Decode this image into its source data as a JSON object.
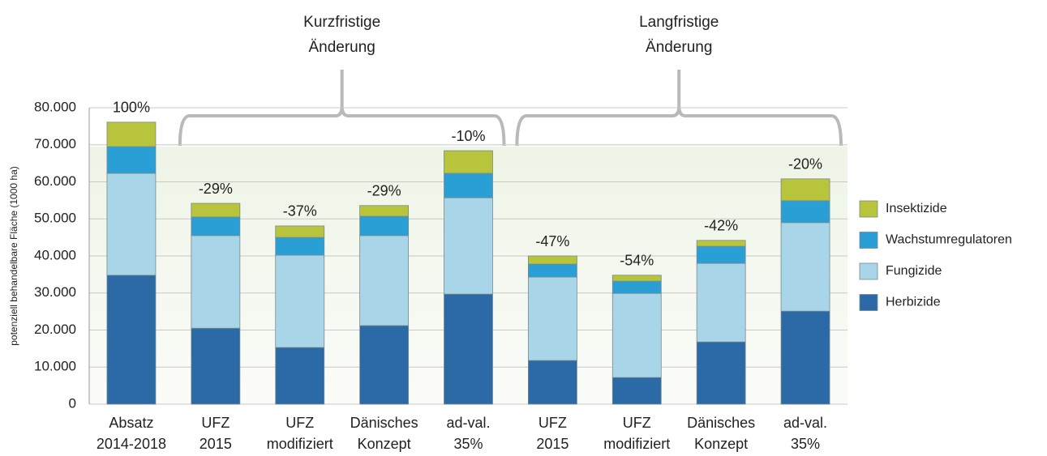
{
  "chart_data": {
    "type": "stacked_bar",
    "y_label": "potenziell behandelbare Fläche (1000 ha)",
    "categories": [
      [
        "Absatz",
        "2014-2018"
      ],
      [
        "UFZ",
        "2015"
      ],
      [
        "UFZ",
        "modifiziert"
      ],
      [
        "Dänisches",
        "Konzept"
      ],
      [
        "ad-val.",
        "35%"
      ],
      [
        "UFZ",
        "2015"
      ],
      [
        "UFZ",
        "modifiziert"
      ],
      [
        "Dänisches",
        "Konzept"
      ],
      [
        "ad-val.",
        "35%"
      ]
    ],
    "series": [
      {
        "name": "Herbizide",
        "color": "#2b6aa6",
        "values": [
          34800,
          20500,
          15300,
          21200,
          29700,
          11800,
          7200,
          16800,
          25100
        ]
      },
      {
        "name": "Fungizide",
        "color": "#a9d5e8",
        "values": [
          27500,
          25000,
          24900,
          24300,
          26000,
          22500,
          22700,
          21200,
          23900
        ]
      },
      {
        "name": "Wachstumregulatoren",
        "color": "#2a9fd6",
        "values": [
          7200,
          5000,
          4800,
          5200,
          6600,
          3500,
          3300,
          4600,
          5900
        ]
      },
      {
        "name": "Insektizide",
        "color": "#b7c43c",
        "values": [
          6600,
          3700,
          3100,
          2900,
          6100,
          2200,
          1600,
          1600,
          5900
        ]
      }
    ],
    "bar_annotations": [
      "100%",
      "-29%",
      "-37%",
      "-29%",
      "-10%",
      "-47%",
      "-54%",
      "-42%",
      "-20%"
    ],
    "groups": [
      {
        "label": [
          "Kurzfristige",
          "Änderung"
        ],
        "from": 1,
        "to": 4
      },
      {
        "label": [
          "Langfristige",
          "Änderung"
        ],
        "from": 5,
        "to": 8
      }
    ],
    "ylim": [
      0,
      80000
    ],
    "yticks": [
      0,
      {
        "value": 10000,
        "label": "10.000"
      },
      {
        "value": 20000,
        "label": "20.000"
      },
      {
        "value": 30000,
        "label": "30.000"
      },
      {
        "value": 40000,
        "label": "40.000"
      },
      {
        "value": 50000,
        "label": "50.000"
      },
      {
        "value": 60000,
        "label": "60.000"
      },
      {
        "value": 70000,
        "label": "70.000"
      },
      {
        "value": 80000,
        "label": "80.000"
      }
    ],
    "grid": true,
    "legend": "right"
  }
}
